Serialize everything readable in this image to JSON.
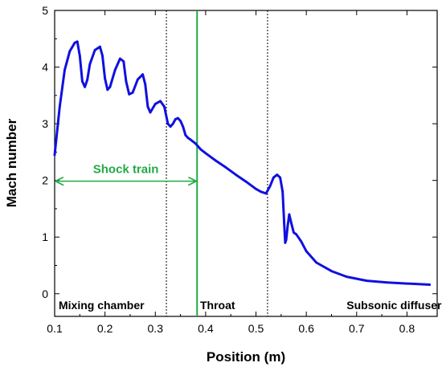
{
  "chart_data": {
    "type": "line",
    "xlabel": "Position (m)",
    "ylabel": "Mach number",
    "xlim": [
      0.1,
      0.86
    ],
    "ylim": [
      -0.4,
      5
    ],
    "xticks": [
      0.1,
      0.2,
      0.3,
      0.4,
      0.5,
      0.6,
      0.7,
      0.8
    ],
    "yticks": [
      0,
      1,
      2,
      3,
      4,
      5
    ],
    "grid": false,
    "legend": "none",
    "series": [
      {
        "color": "#1010e0",
        "x": [
          0.1,
          0.11,
          0.12,
          0.13,
          0.14,
          0.145,
          0.15,
          0.155,
          0.16,
          0.165,
          0.17,
          0.18,
          0.19,
          0.195,
          0.2,
          0.205,
          0.21,
          0.22,
          0.23,
          0.237,
          0.242,
          0.248,
          0.255,
          0.265,
          0.275,
          0.28,
          0.285,
          0.29,
          0.3,
          0.31,
          0.318,
          0.325,
          0.33,
          0.335,
          0.34,
          0.345,
          0.35,
          0.355,
          0.36,
          0.365,
          0.37,
          0.38,
          0.39,
          0.4,
          0.42,
          0.44,
          0.46,
          0.48,
          0.5,
          0.51,
          0.52,
          0.528,
          0.535,
          0.542,
          0.548,
          0.553,
          0.556,
          0.558,
          0.56,
          0.563,
          0.566,
          0.57,
          0.575,
          0.58,
          0.59,
          0.6,
          0.62,
          0.65,
          0.68,
          0.72,
          0.76,
          0.8,
          0.845
        ],
        "y": [
          2.45,
          3.3,
          3.95,
          4.28,
          4.43,
          4.45,
          4.2,
          3.75,
          3.65,
          3.78,
          4.05,
          4.3,
          4.36,
          4.2,
          3.8,
          3.6,
          3.65,
          3.95,
          4.15,
          4.1,
          3.75,
          3.52,
          3.55,
          3.78,
          3.87,
          3.7,
          3.3,
          3.2,
          3.35,
          3.4,
          3.3,
          3.0,
          2.95,
          3.0,
          3.08,
          3.1,
          3.05,
          2.95,
          2.8,
          2.75,
          2.72,
          2.65,
          2.55,
          2.48,
          2.35,
          2.23,
          2.1,
          1.98,
          1.85,
          1.8,
          1.77,
          1.9,
          2.05,
          2.1,
          2.05,
          1.8,
          1.25,
          0.9,
          0.95,
          1.2,
          1.4,
          1.25,
          1.08,
          1.05,
          0.92,
          0.75,
          0.55,
          0.4,
          0.3,
          0.23,
          0.2,
          0.18,
          0.16
        ]
      }
    ],
    "vlines": [
      {
        "x": 0.322,
        "style": "dotted",
        "color": "#000000"
      },
      {
        "x": 0.383,
        "style": "solid",
        "color": "#22aa44"
      },
      {
        "x": 0.523,
        "style": "dotted",
        "color": "#000000"
      }
    ],
    "annotations": {
      "shock_train": {
        "label": "Shock train",
        "x_from": 0.1,
        "x_to": 0.383,
        "y": 2.1,
        "color": "#22aa44"
      },
      "regions": [
        {
          "label": "Mixing chamber",
          "x": 0.108,
          "y": -0.2
        },
        {
          "label": "Throat",
          "x": 0.389,
          "y": -0.2
        },
        {
          "label": "Subsonic diffuser",
          "x": 0.68,
          "y": -0.2
        }
      ]
    }
  }
}
